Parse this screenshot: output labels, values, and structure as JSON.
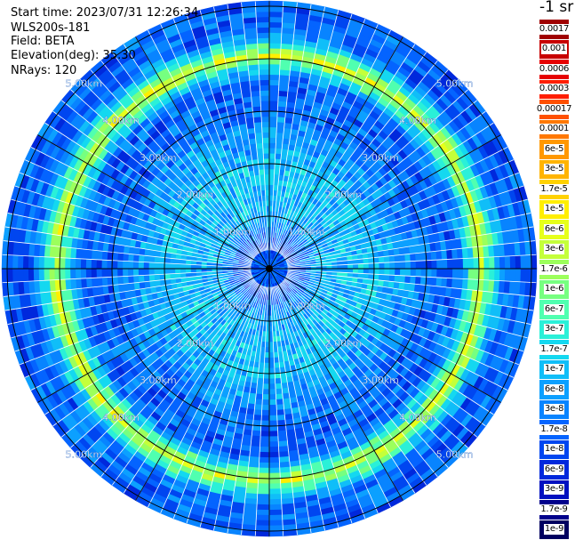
{
  "header": {
    "start_time": "Start time: 2023/07/31 12:26:34",
    "instrument": "WLS200s-181",
    "field": "Field: BETA",
    "elevation": "Elevation(deg): 35.30",
    "nrays": "NRays: 120"
  },
  "colorbar": {
    "unit_label": "-1 sr",
    "entries": [
      {
        "label": "0.0017",
        "color": "#a00000"
      },
      {
        "label": "0.001",
        "color": "#c80000"
      },
      {
        "label": "0.0006",
        "color": "#e60000"
      },
      {
        "label": "0.0003",
        "color": "#ff1e00"
      },
      {
        "label": "0.00017",
        "color": "#ff5000"
      },
      {
        "label": "0.0001",
        "color": "#ff7800"
      },
      {
        "label": "6e-5",
        "color": "#ff9800"
      },
      {
        "label": "3e-5",
        "color": "#ffb400"
      },
      {
        "label": "1.7e-5",
        "color": "#ffd200"
      },
      {
        "label": "1e-5",
        "color": "#ffee00"
      },
      {
        "label": "6e-6",
        "color": "#e6ff1a"
      },
      {
        "label": "3e-6",
        "color": "#c4ff3a"
      },
      {
        "label": "1.7e-6",
        "color": "#9cff5c"
      },
      {
        "label": "1e-6",
        "color": "#76ff80"
      },
      {
        "label": "6e-7",
        "color": "#50ffb0"
      },
      {
        "label": "3e-7",
        "color": "#2af0d8"
      },
      {
        "label": "1.7e-7",
        "color": "#14d8f0"
      },
      {
        "label": "1e-7",
        "color": "#10bef8"
      },
      {
        "label": "6e-8",
        "color": "#0ca0ff"
      },
      {
        "label": "3e-8",
        "color": "#0884ff"
      },
      {
        "label": "1.7e-8",
        "color": "#0464ff"
      },
      {
        "label": "1e-8",
        "color": "#0046f0"
      },
      {
        "label": "6e-9",
        "color": "#0028dc"
      },
      {
        "label": "3e-9",
        "color": "#0010c0"
      },
      {
        "label": "1.7e-9",
        "color": "#00008c"
      },
      {
        "label": "1e-9",
        "color": "#000060"
      }
    ]
  },
  "chart_data": {
    "type": "heatmap",
    "projection": "polar (PPI scan)",
    "field": "BETA",
    "rays": 120,
    "range_rings_km": [
      1,
      2,
      3,
      4,
      5
    ],
    "range_ring_labels": [
      "1.00km",
      "2.00km",
      "3.00km",
      "4.00km",
      "5.00km"
    ],
    "max_range_km": 5.1,
    "gate_km": 0.1,
    "spoke_count": 12,
    "profile": [
      {
        "range_km": 0.0,
        "log10_beta": -7.7
      },
      {
        "range_km": 0.5,
        "log10_beta": -7.9
      },
      {
        "range_km": 1.0,
        "log10_beta": -7.1
      },
      {
        "range_km": 2.0,
        "log10_beta": -7.0
      },
      {
        "range_km": 2.6,
        "log10_beta": -7.4
      },
      {
        "range_km": 3.0,
        "log10_beta": -7.7
      },
      {
        "range_km": 3.6,
        "log10_beta": -7.8
      },
      {
        "range_km": 3.9,
        "log10_beta": -6.3
      },
      {
        "range_km": 4.05,
        "log10_beta": -5.5
      },
      {
        "range_km": 4.2,
        "log10_beta": -6.3
      },
      {
        "range_km": 4.5,
        "log10_beta": -7.7
      },
      {
        "range_km": 5.1,
        "log10_beta": -7.8
      }
    ],
    "grid": true,
    "legend": "right colorbar"
  }
}
